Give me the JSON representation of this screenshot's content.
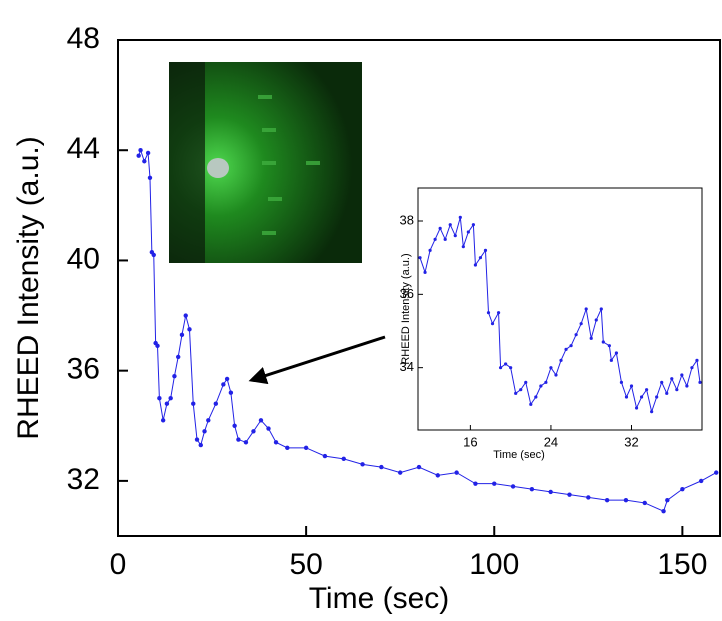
{
  "chart_data": [
    {
      "type": "line",
      "x_label": "Time (sec)",
      "y_label": "RHEED Intensity (a.u.)",
      "xlim": [
        0,
        160
      ],
      "ylim": [
        30,
        48
      ],
      "xticks": [
        0,
        50,
        100,
        150
      ],
      "yticks": [
        32,
        36,
        40,
        44,
        48
      ],
      "x": [
        5.5,
        6,
        7,
        8,
        8.5,
        9,
        9.5,
        10,
        10.5,
        11,
        12,
        13,
        14,
        15,
        16,
        17,
        18,
        19,
        20,
        21,
        22,
        23,
        24,
        26,
        28,
        29,
        30,
        31,
        32,
        34,
        36,
        38,
        40,
        42,
        45,
        50,
        55,
        60,
        65,
        70,
        75,
        80,
        85,
        90,
        95,
        100,
        105,
        110,
        115,
        120,
        125,
        130,
        135,
        140,
        145,
        146,
        150,
        155,
        159
      ],
      "series": [
        {
          "color": "#2222e6",
          "values": [
            43.8,
            44.0,
            43.6,
            43.9,
            43.0,
            40.3,
            40.2,
            37.0,
            36.9,
            35.0,
            34.2,
            34.8,
            35.0,
            35.8,
            36.5,
            37.3,
            38.0,
            37.5,
            34.8,
            33.5,
            33.3,
            33.8,
            34.2,
            34.8,
            35.5,
            35.7,
            35.2,
            34.0,
            33.5,
            33.4,
            33.8,
            34.2,
            33.9,
            33.4,
            33.2,
            33.2,
            32.9,
            32.8,
            32.6,
            32.5,
            32.3,
            32.5,
            32.2,
            32.3,
            31.9,
            31.9,
            31.8,
            31.7,
            31.6,
            31.5,
            31.4,
            31.3,
            31.3,
            31.2,
            30.9,
            31.3,
            31.7,
            32.0,
            32.3
          ]
        }
      ]
    },
    {
      "type": "line",
      "x_label": "Time (sec)",
      "y_label": "RHEED Intensity (a.u.)",
      "xlim": [
        10.8,
        39
      ],
      "ylim": [
        32.3,
        38.9
      ],
      "xticks": [
        16,
        24,
        32
      ],
      "yticks": [
        34,
        36,
        38
      ],
      "x": [
        11,
        11.5,
        12,
        12.5,
        13,
        13.5,
        14,
        14.5,
        15,
        15.3,
        15.8,
        16.3,
        16.5,
        17,
        17.5,
        17.8,
        18.2,
        18.8,
        19,
        19.5,
        20,
        20.5,
        21,
        21.5,
        22,
        22.5,
        23,
        23.5,
        24,
        24.5,
        25,
        25.5,
        26,
        26.5,
        27,
        27.5,
        28,
        28.5,
        29,
        29.2,
        29.8,
        30,
        30.5,
        31,
        31.5,
        32,
        32.5,
        33,
        33.5,
        34,
        34.5,
        35,
        35.5,
        36,
        36.5,
        37,
        37.5,
        38,
        38.5,
        38.8
      ],
      "series": [
        {
          "color": "#2222e6",
          "values": [
            37.0,
            36.6,
            37.2,
            37.5,
            37.8,
            37.5,
            37.9,
            37.6,
            38.1,
            37.3,
            37.7,
            37.9,
            36.8,
            37.0,
            37.2,
            35.5,
            35.2,
            35.5,
            34.0,
            34.1,
            34.0,
            33.3,
            33.4,
            33.6,
            33.0,
            33.2,
            33.5,
            33.6,
            34.0,
            33.8,
            34.2,
            34.5,
            34.6,
            34.9,
            35.2,
            35.6,
            34.8,
            35.3,
            35.6,
            34.7,
            34.6,
            34.2,
            34.4,
            33.6,
            33.2,
            33.5,
            32.9,
            33.2,
            33.4,
            32.8,
            33.2,
            33.6,
            33.3,
            33.7,
            33.4,
            33.8,
            33.5,
            34.0,
            34.2,
            33.6
          ]
        }
      ]
    }
  ]
}
